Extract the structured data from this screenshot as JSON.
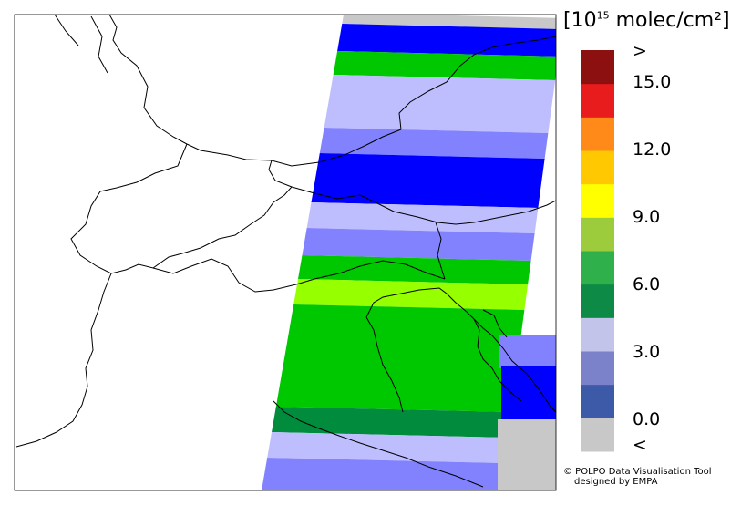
{
  "legend": {
    "title_prefix": "[10",
    "title_exp": "15",
    "title_suffix": " molec/cm²]",
    "colors": [
      "#c8c8c8",
      "#3c5aa8",
      "#7b82c9",
      "#c3c4ea",
      "#0d8a45",
      "#2fb04a",
      "#9ccc3c",
      "#ffff00",
      "#ffc800",
      "#ff8a1a",
      "#e81c1c",
      "#8c1010"
    ],
    "labels": [
      ">",
      "15.0",
      "12.0",
      "9.0",
      "6.0",
      "3.0",
      "0.0",
      "<"
    ]
  },
  "map": {
    "swath_colors": {
      "dark_blue": "#0000ff",
      "light_green": "#00c800",
      "lavender": "#bebeff",
      "periwinkle": "#8282ff",
      "lime": "#96ff00",
      "dark_green": "#008c3c",
      "no_data_gray": "#c8c8c8"
    }
  },
  "credit": {
    "line1": "© POLPO Data Visualisation Tool",
    "line2": "designed by EMPA"
  }
}
